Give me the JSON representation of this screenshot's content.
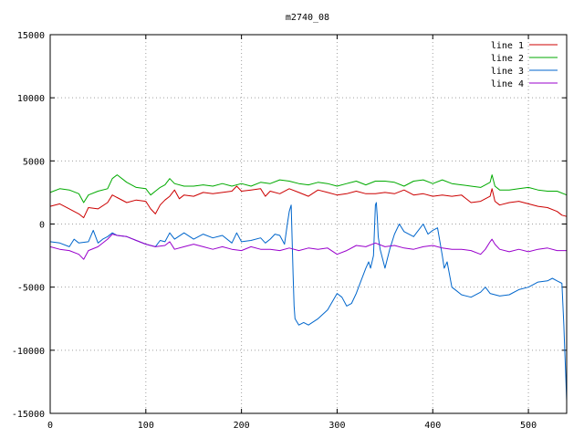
{
  "chart_data": {
    "type": "line",
    "title": "m2740_08",
    "xlabel": "",
    "ylabel": "",
    "xlim": [
      0,
      540
    ],
    "ylim": [
      -15000,
      15000
    ],
    "xticks": [
      0,
      100,
      200,
      300,
      400,
      500
    ],
    "yticks": [
      -15000,
      -10000,
      -5000,
      0,
      5000,
      10000,
      15000
    ],
    "grid": true,
    "legend_position": "top-right",
    "series": [
      {
        "name": "line 1",
        "color": "#cc0000",
        "points": [
          [
            0,
            1400
          ],
          [
            10,
            1600
          ],
          [
            20,
            1200
          ],
          [
            30,
            800
          ],
          [
            35,
            500
          ],
          [
            40,
            1300
          ],
          [
            50,
            1200
          ],
          [
            60,
            1700
          ],
          [
            65,
            2300
          ],
          [
            70,
            2100
          ],
          [
            80,
            1700
          ],
          [
            90,
            1900
          ],
          [
            100,
            1800
          ],
          [
            105,
            1200
          ],
          [
            110,
            800
          ],
          [
            115,
            1500
          ],
          [
            120,
            1900
          ],
          [
            125,
            2200
          ],
          [
            130,
            2700
          ],
          [
            135,
            2000
          ],
          [
            140,
            2300
          ],
          [
            150,
            2200
          ],
          [
            160,
            2500
          ],
          [
            170,
            2400
          ],
          [
            180,
            2500
          ],
          [
            190,
            2600
          ],
          [
            195,
            3000
          ],
          [
            200,
            2600
          ],
          [
            210,
            2700
          ],
          [
            220,
            2800
          ],
          [
            225,
            2200
          ],
          [
            230,
            2600
          ],
          [
            240,
            2400
          ],
          [
            250,
            2800
          ],
          [
            260,
            2500
          ],
          [
            270,
            2200
          ],
          [
            280,
            2700
          ],
          [
            290,
            2500
          ],
          [
            300,
            2300
          ],
          [
            310,
            2400
          ],
          [
            320,
            2600
          ],
          [
            330,
            2400
          ],
          [
            340,
            2400
          ],
          [
            350,
            2500
          ],
          [
            360,
            2400
          ],
          [
            370,
            2700
          ],
          [
            380,
            2300
          ],
          [
            390,
            2400
          ],
          [
            400,
            2200
          ],
          [
            410,
            2300
          ],
          [
            420,
            2200
          ],
          [
            430,
            2300
          ],
          [
            440,
            1700
          ],
          [
            450,
            1800
          ],
          [
            460,
            2200
          ],
          [
            462,
            2800
          ],
          [
            465,
            1800
          ],
          [
            470,
            1500
          ],
          [
            480,
            1700
          ],
          [
            490,
            1800
          ],
          [
            500,
            1600
          ],
          [
            510,
            1400
          ],
          [
            520,
            1300
          ],
          [
            530,
            1000
          ],
          [
            535,
            700
          ],
          [
            540,
            600
          ]
        ]
      },
      {
        "name": "line 2",
        "color": "#00aa00",
        "points": [
          [
            0,
            2500
          ],
          [
            10,
            2800
          ],
          [
            20,
            2700
          ],
          [
            30,
            2400
          ],
          [
            35,
            1700
          ],
          [
            40,
            2300
          ],
          [
            50,
            2600
          ],
          [
            60,
            2800
          ],
          [
            65,
            3600
          ],
          [
            70,
            3900
          ],
          [
            80,
            3300
          ],
          [
            90,
            2900
          ],
          [
            100,
            2800
          ],
          [
            105,
            2300
          ],
          [
            110,
            2600
          ],
          [
            115,
            2900
          ],
          [
            120,
            3100
          ],
          [
            125,
            3600
          ],
          [
            130,
            3200
          ],
          [
            140,
            3000
          ],
          [
            150,
            3000
          ],
          [
            160,
            3100
          ],
          [
            170,
            3000
          ],
          [
            180,
            3200
          ],
          [
            190,
            3000
          ],
          [
            200,
            3200
          ],
          [
            210,
            3000
          ],
          [
            220,
            3300
          ],
          [
            230,
            3200
          ],
          [
            240,
            3500
          ],
          [
            250,
            3400
          ],
          [
            260,
            3200
          ],
          [
            270,
            3100
          ],
          [
            280,
            3300
          ],
          [
            290,
            3200
          ],
          [
            300,
            3000
          ],
          [
            310,
            3200
          ],
          [
            320,
            3400
          ],
          [
            330,
            3100
          ],
          [
            340,
            3400
          ],
          [
            350,
            3400
          ],
          [
            360,
            3300
          ],
          [
            370,
            3000
          ],
          [
            380,
            3400
          ],
          [
            390,
            3500
          ],
          [
            400,
            3200
          ],
          [
            410,
            3500
          ],
          [
            420,
            3200
          ],
          [
            430,
            3100
          ],
          [
            440,
            3000
          ],
          [
            450,
            2900
          ],
          [
            460,
            3300
          ],
          [
            462,
            3900
          ],
          [
            465,
            3000
          ],
          [
            470,
            2700
          ],
          [
            480,
            2700
          ],
          [
            490,
            2800
          ],
          [
            500,
            2900
          ],
          [
            510,
            2700
          ],
          [
            520,
            2600
          ],
          [
            530,
            2600
          ],
          [
            540,
            2300
          ]
        ]
      },
      {
        "name": "line 3",
        "color": "#0066cc",
        "points": [
          [
            0,
            -1400
          ],
          [
            10,
            -1500
          ],
          [
            20,
            -1800
          ],
          [
            25,
            -1200
          ],
          [
            30,
            -1500
          ],
          [
            40,
            -1400
          ],
          [
            45,
            -500
          ],
          [
            50,
            -1500
          ],
          [
            55,
            -1200
          ],
          [
            60,
            -1000
          ],
          [
            65,
            -700
          ],
          [
            70,
            -900
          ],
          [
            80,
            -1000
          ],
          [
            90,
            -1300
          ],
          [
            100,
            -1600
          ],
          [
            110,
            -1800
          ],
          [
            115,
            -1300
          ],
          [
            120,
            -1400
          ],
          [
            125,
            -700
          ],
          [
            130,
            -1200
          ],
          [
            140,
            -700
          ],
          [
            150,
            -1200
          ],
          [
            160,
            -800
          ],
          [
            170,
            -1100
          ],
          [
            180,
            -900
          ],
          [
            190,
            -1500
          ],
          [
            195,
            -700
          ],
          [
            200,
            -1400
          ],
          [
            210,
            -1300
          ],
          [
            220,
            -1100
          ],
          [
            225,
            -1500
          ],
          [
            230,
            -1200
          ],
          [
            235,
            -800
          ],
          [
            240,
            -900
          ],
          [
            245,
            -1600
          ],
          [
            248,
            0
          ],
          [
            250,
            1000
          ],
          [
            252,
            1500
          ],
          [
            254,
            -4000
          ],
          [
            255,
            -6500
          ],
          [
            256,
            -7500
          ],
          [
            260,
            -8000
          ],
          [
            265,
            -7800
          ],
          [
            270,
            -8000
          ],
          [
            280,
            -7500
          ],
          [
            290,
            -6800
          ],
          [
            300,
            -5500
          ],
          [
            305,
            -5800
          ],
          [
            310,
            -6500
          ],
          [
            315,
            -6300
          ],
          [
            320,
            -5500
          ],
          [
            325,
            -4500
          ],
          [
            330,
            -3500
          ],
          [
            333,
            -3000
          ],
          [
            335,
            -3500
          ],
          [
            338,
            -2500
          ],
          [
            340,
            1500
          ],
          [
            341,
            1700
          ],
          [
            342,
            500
          ],
          [
            343,
            -1000
          ],
          [
            345,
            -2000
          ],
          [
            350,
            -3500
          ],
          [
            355,
            -2000
          ],
          [
            360,
            -800
          ],
          [
            365,
            0
          ],
          [
            370,
            -600
          ],
          [
            380,
            -1000
          ],
          [
            385,
            -500
          ],
          [
            390,
            0
          ],
          [
            395,
            -800
          ],
          [
            400,
            -500
          ],
          [
            405,
            -300
          ],
          [
            410,
            -2500
          ],
          [
            412,
            -3500
          ],
          [
            415,
            -3000
          ],
          [
            420,
            -5000
          ],
          [
            425,
            -5300
          ],
          [
            430,
            -5600
          ],
          [
            440,
            -5800
          ],
          [
            450,
            -5400
          ],
          [
            455,
            -5000
          ],
          [
            460,
            -5500
          ],
          [
            470,
            -5700
          ],
          [
            480,
            -5600
          ],
          [
            490,
            -5200
          ],
          [
            500,
            -5000
          ],
          [
            505,
            -4800
          ],
          [
            510,
            -4600
          ],
          [
            520,
            -4500
          ],
          [
            525,
            -4300
          ],
          [
            530,
            -4500
          ],
          [
            535,
            -4700
          ],
          [
            537,
            -8000
          ],
          [
            538,
            -10000
          ],
          [
            539,
            -12000
          ],
          [
            540,
            -14000
          ]
        ]
      },
      {
        "name": "line 4",
        "color": "#9900cc",
        "points": [
          [
            0,
            -1800
          ],
          [
            10,
            -2000
          ],
          [
            20,
            -2100
          ],
          [
            30,
            -2400
          ],
          [
            35,
            -2800
          ],
          [
            40,
            -2100
          ],
          [
            50,
            -1800
          ],
          [
            60,
            -1200
          ],
          [
            65,
            -800
          ],
          [
            70,
            -900
          ],
          [
            80,
            -1000
          ],
          [
            90,
            -1300
          ],
          [
            100,
            -1600
          ],
          [
            110,
            -1800
          ],
          [
            120,
            -1700
          ],
          [
            125,
            -1400
          ],
          [
            130,
            -2000
          ],
          [
            140,
            -1800
          ],
          [
            150,
            -1600
          ],
          [
            160,
            -1800
          ],
          [
            170,
            -2000
          ],
          [
            180,
            -1800
          ],
          [
            190,
            -2000
          ],
          [
            200,
            -2100
          ],
          [
            210,
            -1800
          ],
          [
            220,
            -2000
          ],
          [
            230,
            -2000
          ],
          [
            240,
            -2100
          ],
          [
            250,
            -1900
          ],
          [
            260,
            -2100
          ],
          [
            270,
            -1900
          ],
          [
            280,
            -2000
          ],
          [
            290,
            -1900
          ],
          [
            300,
            -2400
          ],
          [
            310,
            -2100
          ],
          [
            320,
            -1700
          ],
          [
            330,
            -1800
          ],
          [
            340,
            -1500
          ],
          [
            350,
            -1800
          ],
          [
            360,
            -1700
          ],
          [
            370,
            -1900
          ],
          [
            380,
            -2000
          ],
          [
            390,
            -1800
          ],
          [
            400,
            -1700
          ],
          [
            410,
            -1900
          ],
          [
            420,
            -2000
          ],
          [
            430,
            -2000
          ],
          [
            440,
            -2100
          ],
          [
            450,
            -2400
          ],
          [
            455,
            -2000
          ],
          [
            460,
            -1400
          ],
          [
            462,
            -1200
          ],
          [
            465,
            -1600
          ],
          [
            470,
            -2000
          ],
          [
            480,
            -2200
          ],
          [
            490,
            -2000
          ],
          [
            500,
            -2200
          ],
          [
            510,
            -2000
          ],
          [
            520,
            -1900
          ],
          [
            530,
            -2100
          ],
          [
            540,
            -2100
          ]
        ]
      }
    ]
  }
}
